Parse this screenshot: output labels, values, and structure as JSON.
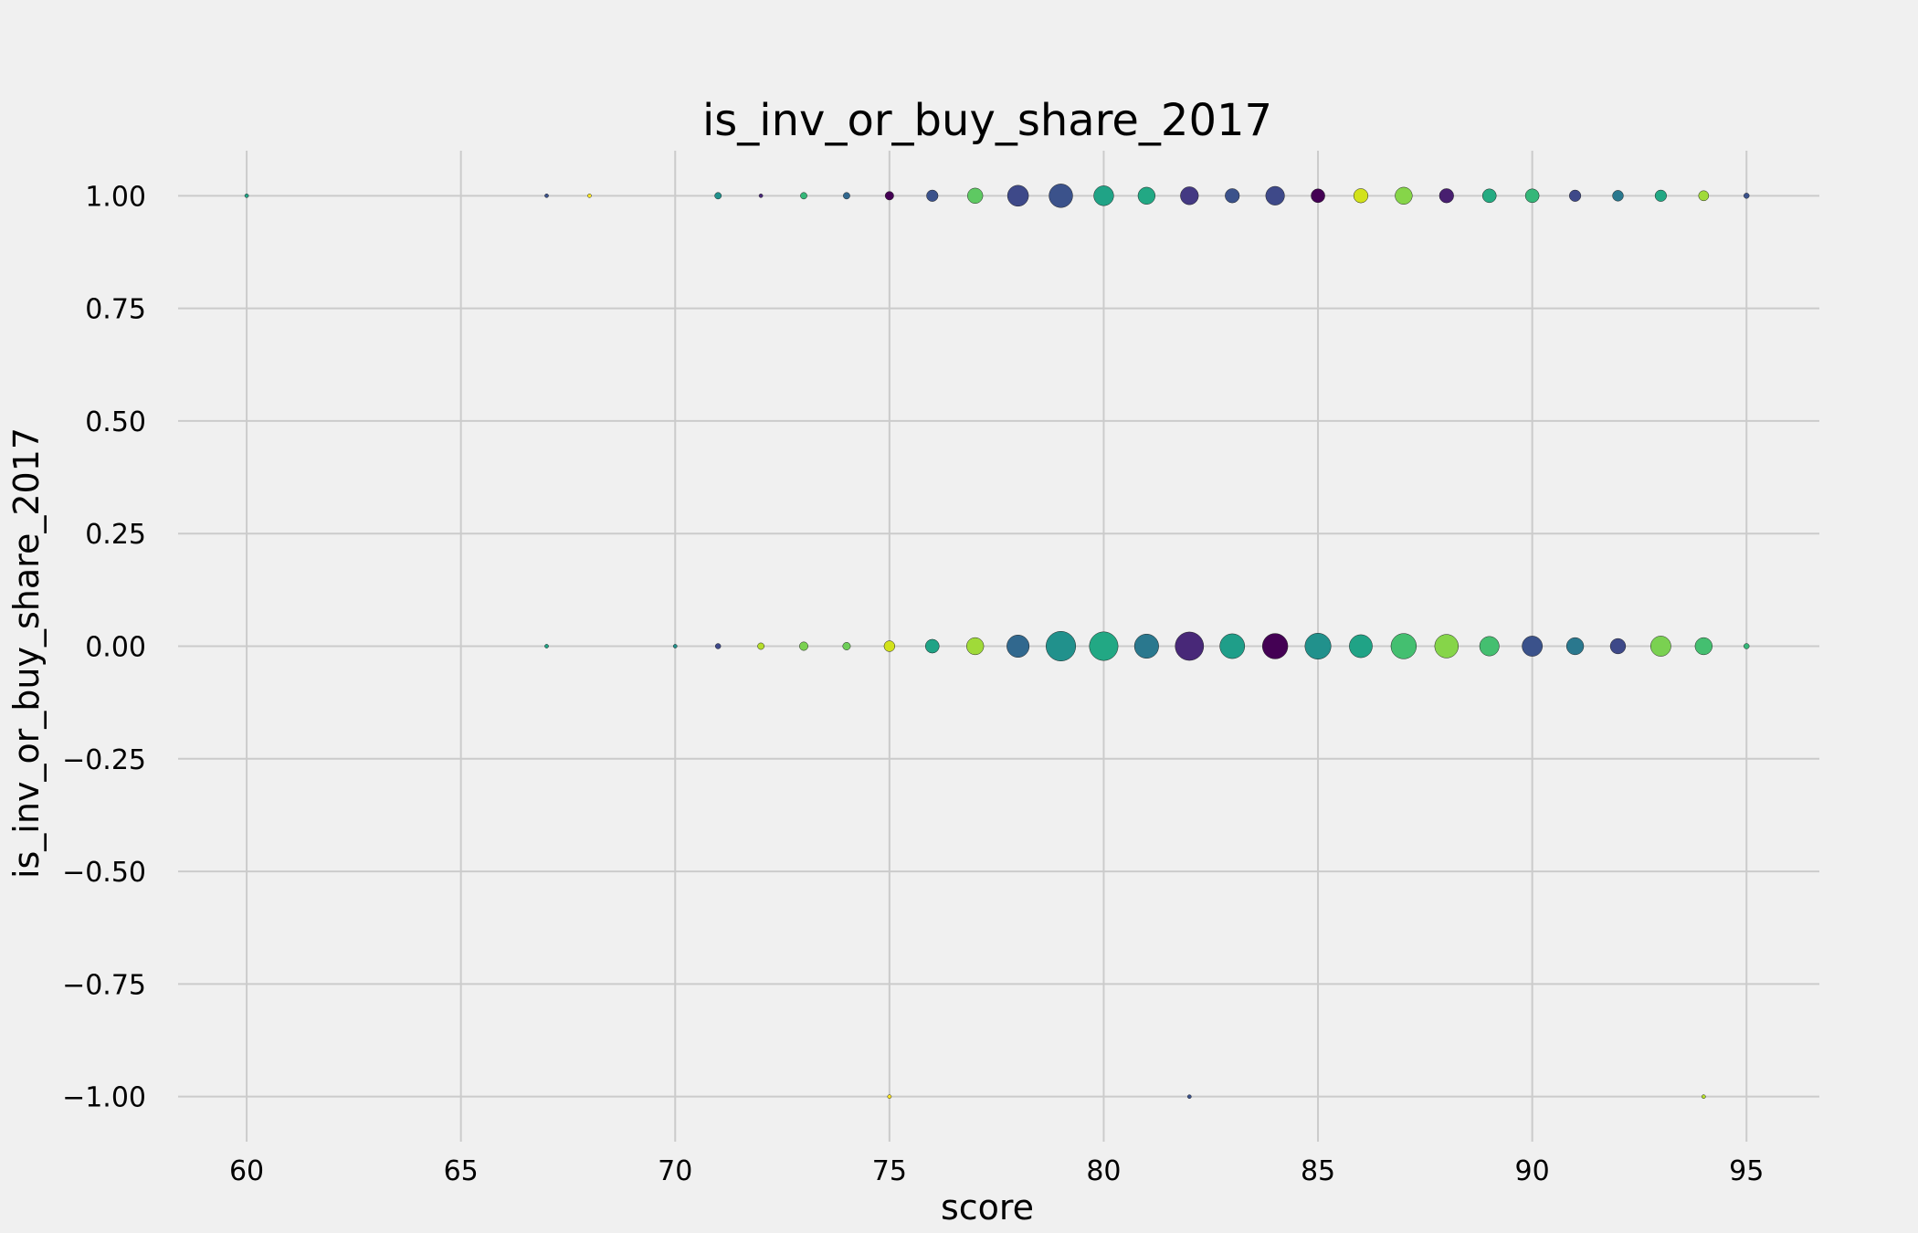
{
  "chart_data": {
    "type": "scatter",
    "title": "is_inv_or_buy_share_2017",
    "xlabel": "score",
    "ylabel": "is_inv_or_buy_share_2017",
    "xlim": [
      58.4,
      96.7
    ],
    "ylim": [
      -1.1,
      1.1
    ],
    "x_ticks": [
      60,
      65,
      70,
      75,
      80,
      85,
      90,
      95
    ],
    "x_tick_labels": [
      "60",
      "65",
      "70",
      "75",
      "80",
      "85",
      "90",
      "95"
    ],
    "y_ticks": [
      1.0,
      0.75,
      0.5,
      0.25,
      0.0,
      -0.25,
      -0.5,
      -0.75,
      -1.0
    ],
    "y_tick_labels": [
      "1.00",
      "0.75",
      "0.50",
      "0.25",
      "0.00",
      "−0.25",
      "−0.50",
      "−0.75",
      "−1.00"
    ],
    "grid": true,
    "colormap": "viridis",
    "points": [
      {
        "x": 60,
        "y": 1,
        "size": 1,
        "color": "#20a386"
      },
      {
        "x": 67,
        "y": 1,
        "size": 1,
        "color": "#3b528b"
      },
      {
        "x": 68,
        "y": 1,
        "size": 1,
        "color": "#fde725"
      },
      {
        "x": 71,
        "y": 1,
        "size": 3,
        "color": "#21918c"
      },
      {
        "x": 72,
        "y": 1,
        "size": 1,
        "color": "#482878"
      },
      {
        "x": 73,
        "y": 1,
        "size": 3,
        "color": "#35b779"
      },
      {
        "x": 74,
        "y": 1,
        "size": 3,
        "color": "#31688e"
      },
      {
        "x": 75,
        "y": 1,
        "size": 5,
        "color": "#440154"
      },
      {
        "x": 76,
        "y": 1,
        "size": 9,
        "color": "#3b528b"
      },
      {
        "x": 77,
        "y": 1,
        "size": 16,
        "color": "#5ec962"
      },
      {
        "x": 78,
        "y": 1,
        "size": 30,
        "color": "#3e4989"
      },
      {
        "x": 79,
        "y": 1,
        "size": 38,
        "color": "#3b528b"
      },
      {
        "x": 80,
        "y": 1,
        "size": 27,
        "color": "#20a386"
      },
      {
        "x": 81,
        "y": 1,
        "size": 20,
        "color": "#22a884"
      },
      {
        "x": 82,
        "y": 1,
        "size": 22,
        "color": "#443983"
      },
      {
        "x": 83,
        "y": 1,
        "size": 14,
        "color": "#3b528b"
      },
      {
        "x": 84,
        "y": 1,
        "size": 24,
        "color": "#3e4989"
      },
      {
        "x": 85,
        "y": 1,
        "size": 13,
        "color": "#440154"
      },
      {
        "x": 86,
        "y": 1,
        "size": 14,
        "color": "#d2e21b"
      },
      {
        "x": 87,
        "y": 1,
        "size": 20,
        "color": "#86d549"
      },
      {
        "x": 88,
        "y": 1,
        "size": 14,
        "color": "#481f70"
      },
      {
        "x": 89,
        "y": 1,
        "size": 13,
        "color": "#25ab82"
      },
      {
        "x": 90,
        "y": 1,
        "size": 13,
        "color": "#35b779"
      },
      {
        "x": 91,
        "y": 1,
        "size": 9,
        "color": "#3e4989"
      },
      {
        "x": 92,
        "y": 1,
        "size": 8,
        "color": "#2a788e"
      },
      {
        "x": 93,
        "y": 1,
        "size": 9,
        "color": "#22a884"
      },
      {
        "x": 94,
        "y": 1,
        "size": 7,
        "color": "#a0da39"
      },
      {
        "x": 95,
        "y": 1,
        "size": 2,
        "color": "#3b528b"
      },
      {
        "x": 67,
        "y": 0,
        "size": 1,
        "color": "#20a386"
      },
      {
        "x": 70,
        "y": 0,
        "size": 1,
        "color": "#21918c"
      },
      {
        "x": 71,
        "y": 0,
        "size": 2,
        "color": "#3e4989"
      },
      {
        "x": 72,
        "y": 0,
        "size": 3,
        "color": "#b5de2b"
      },
      {
        "x": 73,
        "y": 0,
        "size": 5,
        "color": "#7ad151"
      },
      {
        "x": 74,
        "y": 0,
        "size": 4,
        "color": "#6ece58"
      },
      {
        "x": 75,
        "y": 0,
        "size": 8,
        "color": "#d2e21b"
      },
      {
        "x": 76,
        "y": 0,
        "size": 13,
        "color": "#20a386"
      },
      {
        "x": 77,
        "y": 0,
        "size": 20,
        "color": "#a0da39"
      },
      {
        "x": 78,
        "y": 0,
        "size": 34,
        "color": "#31688e"
      },
      {
        "x": 79,
        "y": 0,
        "size": 60,
        "color": "#21918c"
      },
      {
        "x": 80,
        "y": 0,
        "size": 56,
        "color": "#22a884"
      },
      {
        "x": 81,
        "y": 0,
        "size": 40,
        "color": "#2a788e"
      },
      {
        "x": 82,
        "y": 0,
        "size": 55,
        "color": "#482878"
      },
      {
        "x": 83,
        "y": 0,
        "size": 42,
        "color": "#1f9e89"
      },
      {
        "x": 84,
        "y": 0,
        "size": 44,
        "color": "#440154"
      },
      {
        "x": 85,
        "y": 0,
        "size": 46,
        "color": "#21918c"
      },
      {
        "x": 86,
        "y": 0,
        "size": 36,
        "color": "#20a386"
      },
      {
        "x": 87,
        "y": 0,
        "size": 44,
        "color": "#44bf70"
      },
      {
        "x": 88,
        "y": 0,
        "size": 38,
        "color": "#86d549"
      },
      {
        "x": 89,
        "y": 0,
        "size": 26,
        "color": "#44bf70"
      },
      {
        "x": 90,
        "y": 0,
        "size": 28,
        "color": "#3b528b"
      },
      {
        "x": 91,
        "y": 0,
        "size": 20,
        "color": "#2a788e"
      },
      {
        "x": 92,
        "y": 0,
        "size": 16,
        "color": "#3e4989"
      },
      {
        "x": 93,
        "y": 0,
        "size": 28,
        "color": "#7ad151"
      },
      {
        "x": 94,
        "y": 0,
        "size": 20,
        "color": "#44bf70"
      },
      {
        "x": 95,
        "y": 0,
        "size": 2,
        "color": "#35b779"
      },
      {
        "x": 75,
        "y": -1,
        "size": 1,
        "color": "#fde725"
      },
      {
        "x": 82,
        "y": -1,
        "size": 1,
        "color": "#3b528b"
      },
      {
        "x": 94,
        "y": -1,
        "size": 1,
        "color": "#b5de2b"
      }
    ]
  }
}
